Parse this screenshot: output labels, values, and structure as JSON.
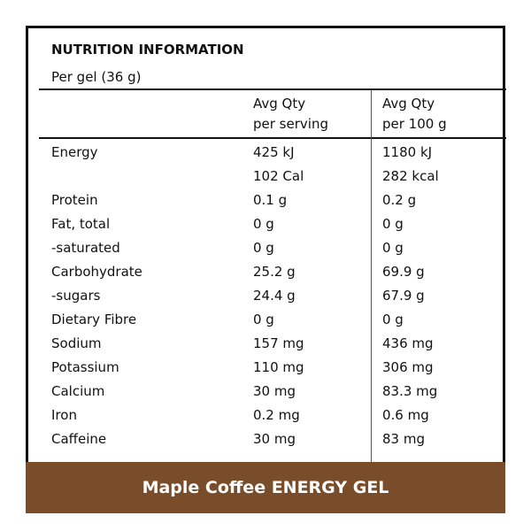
{
  "panel": {
    "title": "NUTRITION INFORMATION",
    "serving": "Per gel (36 g)",
    "col_serving_line1": "Avg Qty",
    "col_serving_line2": "per serving",
    "col_100_line1": "Avg Qty",
    "col_100_line2": "per 100 g",
    "rows": [
      {
        "name": "Energy",
        "serving": "425 kJ",
        "per100": "1180 kJ"
      },
      {
        "name": "",
        "serving": "102 Cal",
        "per100": "282 kcal"
      },
      {
        "name": "Protein",
        "serving": "0.1 g",
        "per100": "0.2 g"
      },
      {
        "name": "Fat, total",
        "serving": "0 g",
        "per100": "0 g"
      },
      {
        "name": "-saturated",
        "serving": "0 g",
        "per100": "0 g"
      },
      {
        "name": "Carbohydrate",
        "serving": "25.2 g",
        "per100": "69.9 g"
      },
      {
        "name": "-sugars",
        "serving": "24.4 g",
        "per100": "67.9 g"
      },
      {
        "name": "Dietary Fibre",
        "serving": "0 g",
        "per100": "0 g"
      },
      {
        "name": "Sodium",
        "serving": "157 mg",
        "per100": "436 mg"
      },
      {
        "name": "Potassium",
        "serving": "110 mg",
        "per100": "306 mg"
      },
      {
        "name": "Calcium",
        "serving": "30 mg",
        "per100": "83.3 mg"
      },
      {
        "name": "Iron",
        "serving": "0.2 mg",
        "per100": "0.6 mg"
      },
      {
        "name": "Caffeine",
        "serving": "30 mg",
        "per100": "83 mg"
      }
    ]
  },
  "banner": {
    "label": "Maple Coffee ENERGY GEL",
    "color": "#7a4d2a"
  }
}
